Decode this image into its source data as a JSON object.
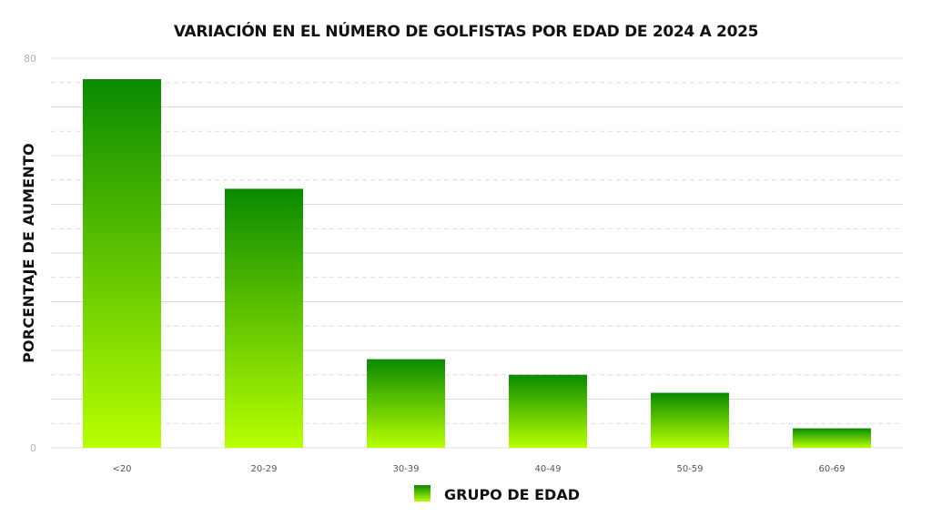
{
  "chart_data": {
    "type": "bar",
    "title": "VARIACIÓN EN EL NÚMERO DE GOLFISTAS POR EDAD DE 2024 A 2025",
    "xlabel": "",
    "ylabel": "PORCENTAJE DE AUMENTO",
    "categories": [
      "<20",
      "20-29",
      "30-39",
      "40-49",
      "50-59",
      "60-69"
    ],
    "series": [
      {
        "name": "GRUPO DE EDAD",
        "values": [
          75.7,
          53.2,
          18.2,
          15.0,
          11.3,
          4.0
        ]
      }
    ],
    "ylim": [
      0,
      80
    ],
    "yticks": [
      "0",
      "80"
    ],
    "grid": true,
    "legend_position": "bottom",
    "colors": {
      "bar_top": "#0a8a00",
      "bar_bottom": "#b8ff00",
      "grid": "#dcdcdc"
    }
  }
}
